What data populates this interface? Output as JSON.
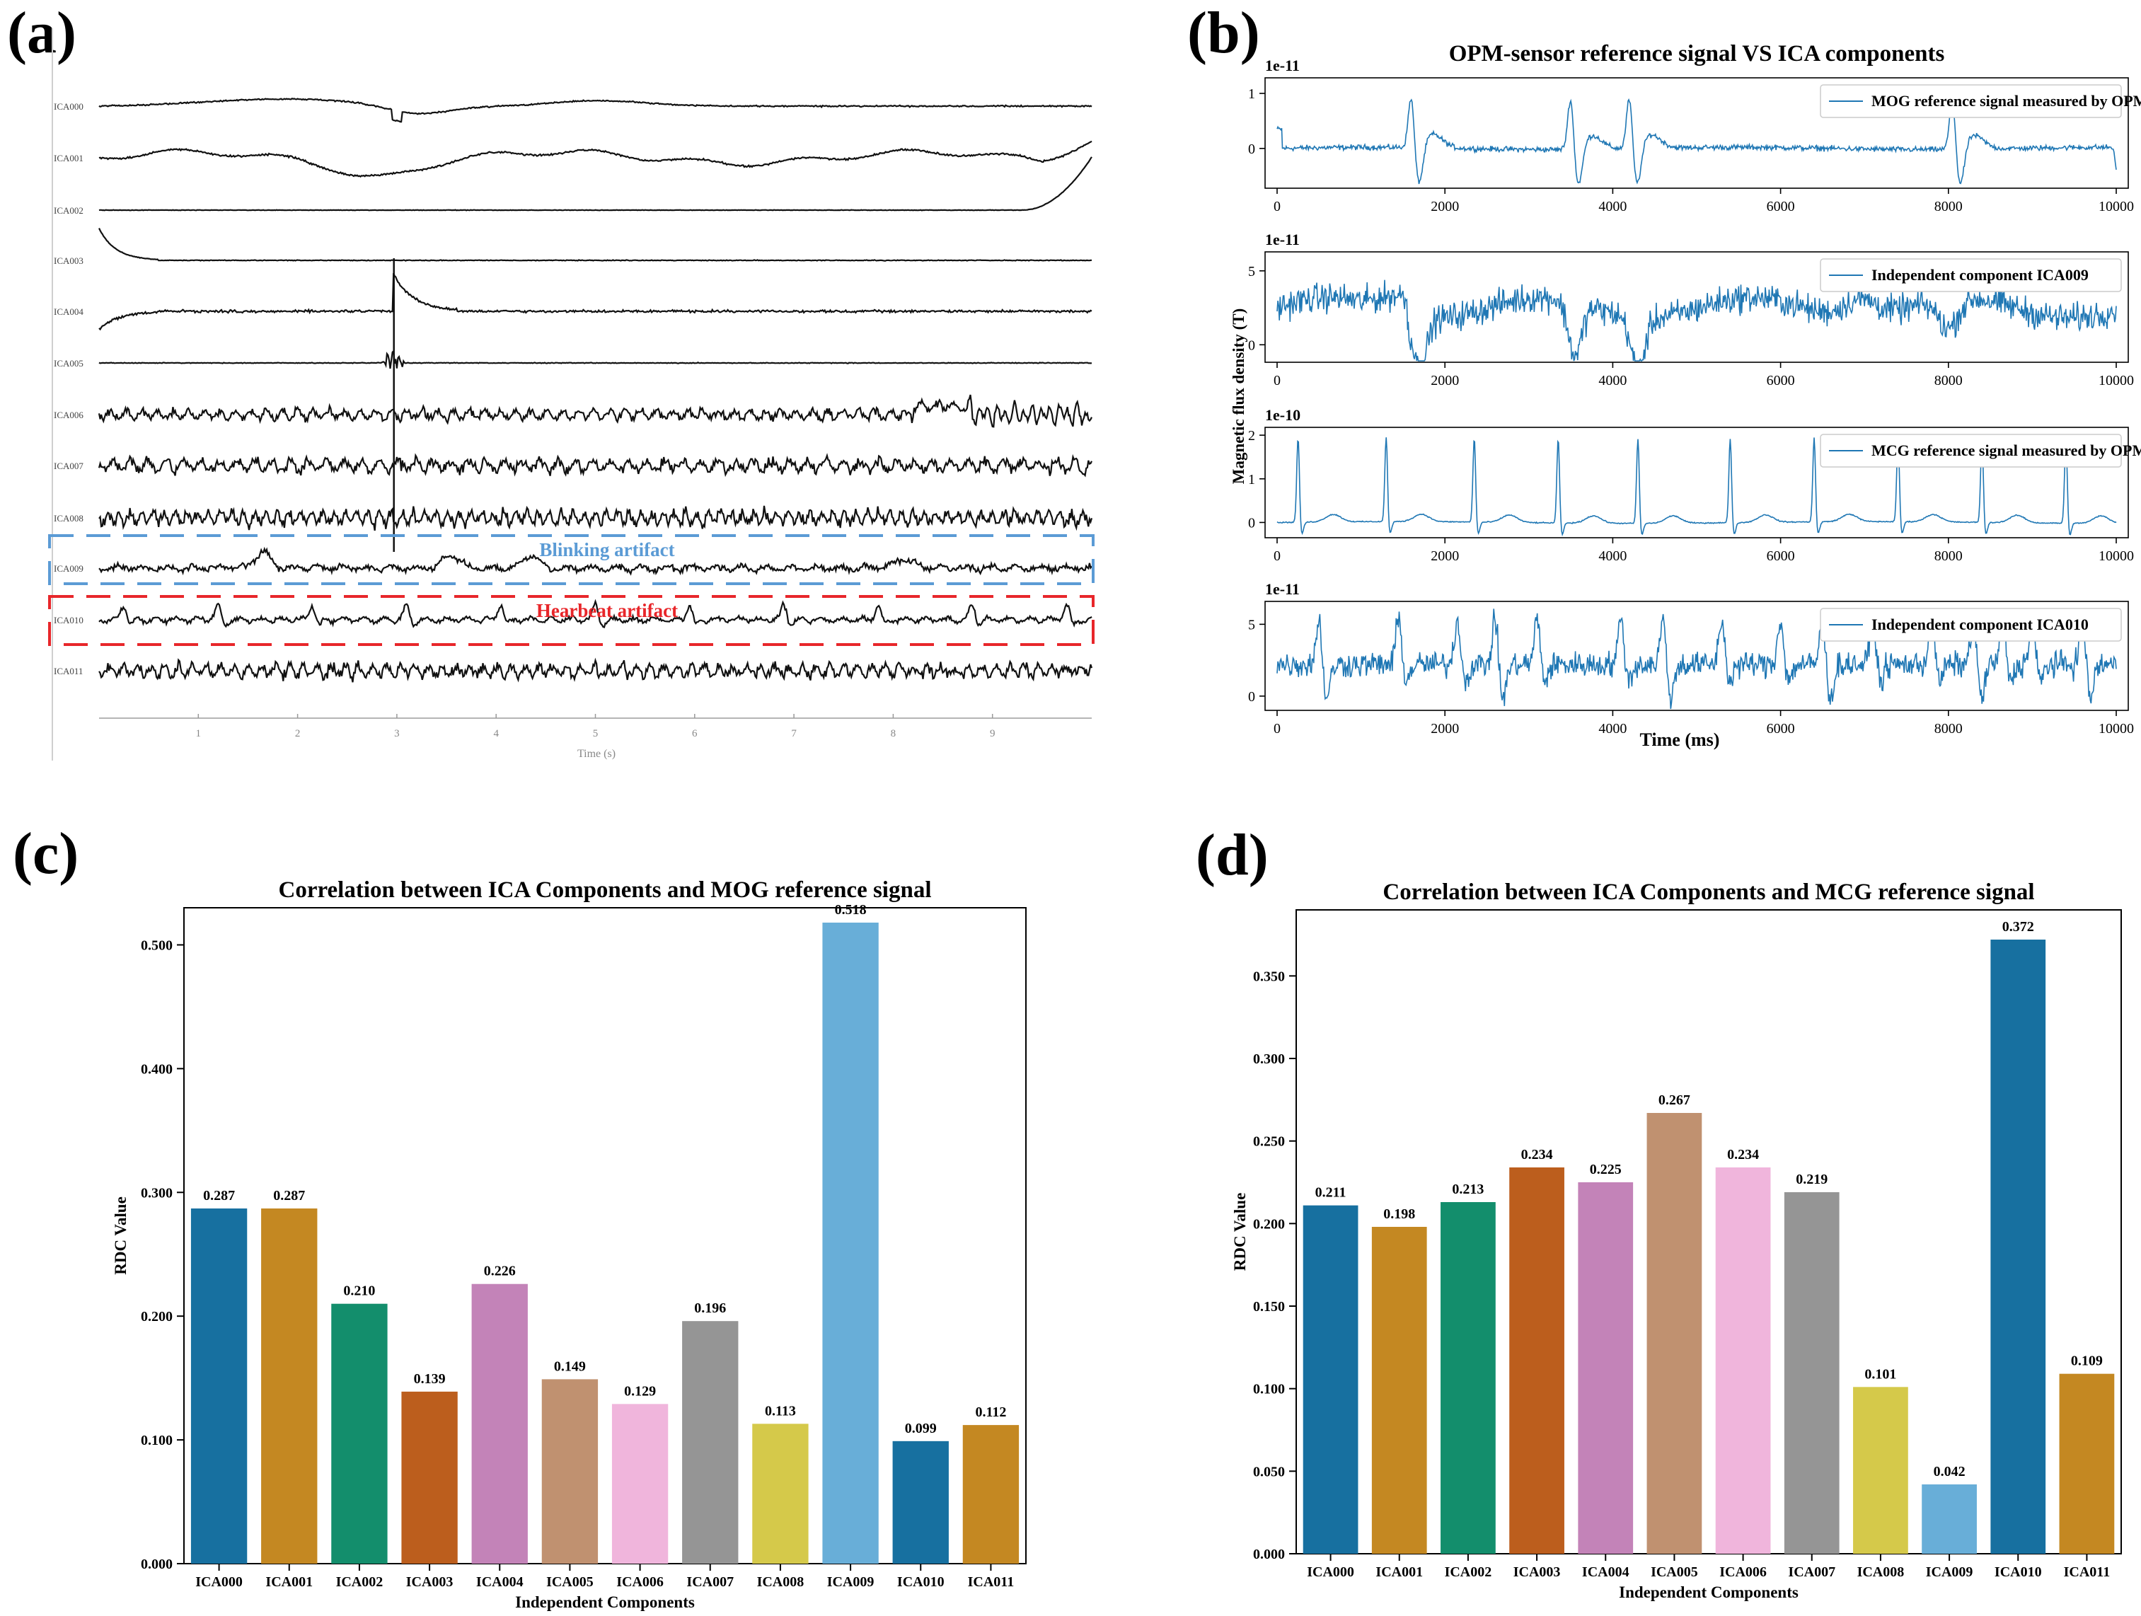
{
  "panel_labels": [
    "(a)",
    "(b)",
    "(c)",
    "(d)"
  ],
  "chart_data": [
    {
      "panel": "(a)",
      "type": "line",
      "title": "",
      "xlabel": "Time (s)",
      "xticks": [
        "1",
        "2",
        "3",
        "4",
        "5",
        "6",
        "7",
        "8",
        "9"
      ],
      "xlim": [
        0,
        10
      ],
      "channels": [
        "ICA000",
        "ICA001",
        "ICA002",
        "ICA003",
        "ICA004",
        "ICA005",
        "ICA006",
        "ICA007",
        "ICA008",
        "ICA009",
        "ICA010",
        "ICA011"
      ],
      "annotations": [
        {
          "text": "Blinking artifact",
          "target": "ICA009",
          "color": "#5b9bd5"
        },
        {
          "text": "Hearbeat artifact",
          "target": "ICA010",
          "color": "#e8262a"
        }
      ]
    },
    {
      "panel": "(b)",
      "type": "line",
      "title": "OPM-sensor reference signal VS ICA components",
      "xlabel": "Time (ms)",
      "ylabel": "Magnetic flux density (T)",
      "line_color": "#1f77b4",
      "subplots": [
        {
          "name": "MOG reference signal measured by OPM-sensor A",
          "scale": "1e-11",
          "yticks": [
            "0",
            "1"
          ],
          "xticks": [
            "0",
            "2000",
            "4000",
            "6000",
            "8000",
            "10000"
          ]
        },
        {
          "name": "Independent component ICA009",
          "scale": "1e-11",
          "yticks": [
            "0",
            "5"
          ],
          "xticks": [
            "0",
            "2000",
            "4000",
            "6000",
            "8000",
            "10000"
          ]
        },
        {
          "name": "MCG reference signal measured by OPM-sensor B",
          "scale": "1e-10",
          "yticks": [
            "0",
            "1",
            "2"
          ],
          "xticks": [
            "0",
            "2000",
            "4000",
            "6000",
            "8000",
            "10000"
          ]
        },
        {
          "name": "Independent component ICA010",
          "scale": "1e-11",
          "yticks": [
            "0",
            "5"
          ],
          "xticks": [
            "0",
            "2000",
            "4000",
            "6000",
            "8000",
            "10000"
          ]
        }
      ]
    },
    {
      "panel": "(c)",
      "type": "bar",
      "title": "Correlation between ICA Components and MOG reference signal",
      "xlabel": "Independent Components",
      "ylabel": "RDC Value",
      "ylim": [
        0,
        0.53
      ],
      "yticks": [
        "0.000",
        "0.100",
        "0.200",
        "0.300",
        "0.400",
        "0.500"
      ],
      "categories": [
        "ICA000",
        "ICA001",
        "ICA002",
        "ICA003",
        "ICA004",
        "ICA005",
        "ICA006",
        "ICA007",
        "ICA008",
        "ICA009",
        "ICA010",
        "ICA011"
      ],
      "values": [
        0.287,
        0.287,
        0.21,
        0.139,
        0.226,
        0.149,
        0.129,
        0.196,
        0.113,
        0.518,
        0.099,
        0.112
      ],
      "labels": [
        "0.287",
        "0.287",
        "0.210",
        "0.139",
        "0.226",
        "0.149",
        "0.129",
        "0.196",
        "0.113",
        "0.518",
        "0.099",
        "0.112"
      ],
      "colors": [
        "#1770a0",
        "#c48822",
        "#138e6c",
        "#bc5e1d",
        "#c383b8",
        "#c09170",
        "#f0b5dc",
        "#959595",
        "#d5c94a",
        "#68aed8",
        "#1770a0",
        "#c48822"
      ]
    },
    {
      "panel": "(d)",
      "type": "bar",
      "title": "Correlation between ICA Components and MCG reference signal",
      "xlabel": "Independent Components",
      "ylabel": "RDC Value",
      "ylim": [
        0,
        0.39
      ],
      "yticks": [
        "0.000",
        "0.050",
        "0.100",
        "0.150",
        "0.200",
        "0.250",
        "0.300",
        "0.350"
      ],
      "categories": [
        "ICA000",
        "ICA001",
        "ICA002",
        "ICA003",
        "ICA004",
        "ICA005",
        "ICA006",
        "ICA007",
        "ICA008",
        "ICA009",
        "ICA010",
        "ICA011"
      ],
      "values": [
        0.211,
        0.198,
        0.213,
        0.234,
        0.225,
        0.267,
        0.234,
        0.219,
        0.101,
        0.042,
        0.372,
        0.109
      ],
      "labels": [
        "0.211",
        "0.198",
        "0.213",
        "0.234",
        "0.225",
        "0.267",
        "0.234",
        "0.219",
        "0.101",
        "0.042",
        "0.372",
        "0.109"
      ],
      "colors": [
        "#1770a0",
        "#c48822",
        "#138e6c",
        "#bc5e1d",
        "#c383b8",
        "#c09170",
        "#f0b5dc",
        "#959595",
        "#d5c94a",
        "#68aed8",
        "#1770a0",
        "#c48822"
      ]
    }
  ]
}
